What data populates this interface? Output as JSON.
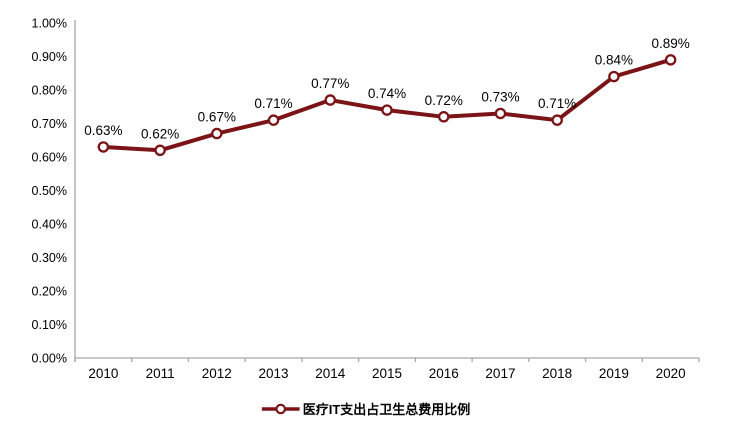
{
  "chart_data": {
    "type": "line",
    "title": "",
    "xlabel": "",
    "ylabel": "",
    "categories": [
      "2010",
      "2011",
      "2012",
      "2013",
      "2014",
      "2015",
      "2016",
      "2017",
      "2018",
      "2019",
      "2020"
    ],
    "series": [
      {
        "name": "医疗IT支出占卫生总费用比例",
        "values": [
          0.63,
          0.62,
          0.67,
          0.71,
          0.77,
          0.74,
          0.72,
          0.73,
          0.71,
          0.84,
          0.89
        ],
        "labels": [
          "0.63%",
          "0.62%",
          "0.67%",
          "0.71%",
          "0.77%",
          "0.74%",
          "0.72%",
          "0.73%",
          "0.71%",
          "0.84%",
          "0.89%"
        ],
        "marker": "open-circle"
      }
    ],
    "ylim": [
      0,
      1.0
    ],
    "ytick_step": 0.1,
    "yticks": [
      "0.00%",
      "0.10%",
      "0.20%",
      "0.30%",
      "0.40%",
      "0.50%",
      "0.60%",
      "0.70%",
      "0.80%",
      "0.90%",
      "1.00%"
    ],
    "grid": false,
    "legend_position": "bottom-center",
    "colors": {
      "series": "#7B1416",
      "marker_fill": "#FFFFFF",
      "axis": "#A6A6A6",
      "text": "#000000",
      "background": "#FFFFFF"
    }
  }
}
